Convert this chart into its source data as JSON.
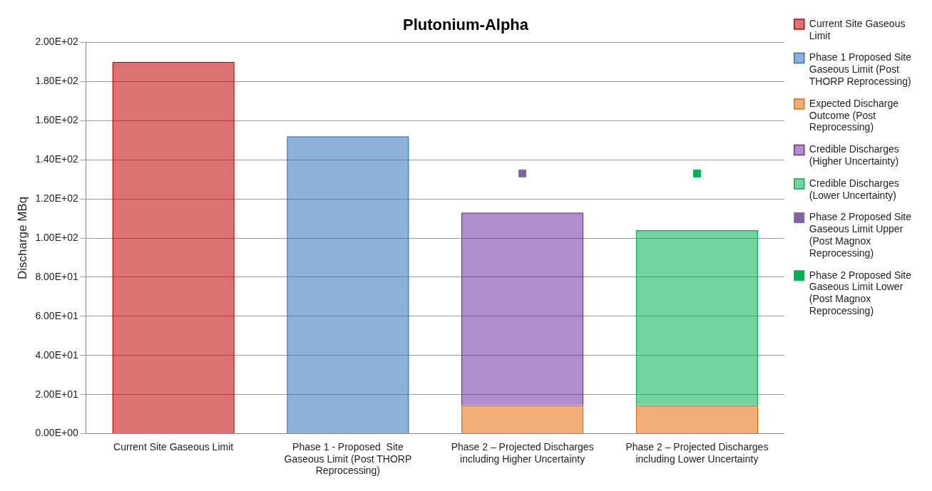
{
  "chart_data": {
    "type": "bar",
    "title": "Plutonium-Alpha",
    "ylabel": "Discharge MBq",
    "categories": [
      "Current Site Gaseous Limit",
      "Phase 1 - Proposed  Site Gaseous Limit (Post THORP Reprocessing)",
      "Phase 2 – Projected Discharges including Higher Uncertainty",
      "Phase 2 – Projected Discharges including Lower Uncertainty"
    ],
    "stacked": true,
    "series": [
      {
        "name": "Current Site Gaseous Limit",
        "color": "#c00000",
        "values": [
          190,
          null,
          null,
          null
        ]
      },
      {
        "name": "Phase 1 Proposed Site Gaseous Limit (Post THORP Reprocessing)",
        "color": "#2e75b6",
        "values": [
          null,
          152,
          null,
          null
        ]
      },
      {
        "name": "Expected Discharge Outcome (Post Reprocessing)",
        "color": "#e46c0a",
        "values": [
          null,
          null,
          14.5,
          14.5
        ]
      },
      {
        "name": "Credible Discharges (Higher Uncertainty)",
        "color": "#7030a0",
        "values": [
          null,
          null,
          98.5,
          null
        ]
      },
      {
        "name": "Credible Discharges (Lower Uncertainty)",
        "color": "#00b050",
        "values": [
          null,
          null,
          null,
          89.5
        ]
      },
      {
        "name": "Phase 2 Proposed Site Gaseous Limit Upper (Post Magnox Reprocessing)",
        "type": "scatter",
        "marker": "square",
        "color": "#8064a2",
        "x": [
          "Phase 2 – Projected Discharges including Higher Uncertainty"
        ],
        "values": [
          133
        ]
      },
      {
        "name": "Phase 2 Proposed Site Gaseous Limit Lower (Post Magnox Reprocessing)",
        "type": "scatter",
        "marker": "square",
        "color": "#00b050",
        "x": [
          "Phase 2 – Projected Discharges including Lower Uncertainty"
        ],
        "values": [
          133
        ]
      }
    ],
    "ylim": [
      0,
      200
    ],
    "yticks": [
      {
        "value": 0,
        "label": "0.00E+00"
      },
      {
        "value": 20,
        "label": "2.00E+01"
      },
      {
        "value": 40,
        "label": "4.00E+01"
      },
      {
        "value": 60,
        "label": "6.00E+01"
      },
      {
        "value": 80,
        "label": "8.00E+01"
      },
      {
        "value": 100,
        "label": "1.00E+02"
      },
      {
        "value": 120,
        "label": "1.20E+02"
      },
      {
        "value": 140,
        "label": "1.40E+02"
      },
      {
        "value": 160,
        "label": "1.60E+02"
      },
      {
        "value": 180,
        "label": "1.80E+02"
      },
      {
        "value": 200,
        "label": "2.00E+02"
      }
    ],
    "grid": "y",
    "legend": "right"
  }
}
